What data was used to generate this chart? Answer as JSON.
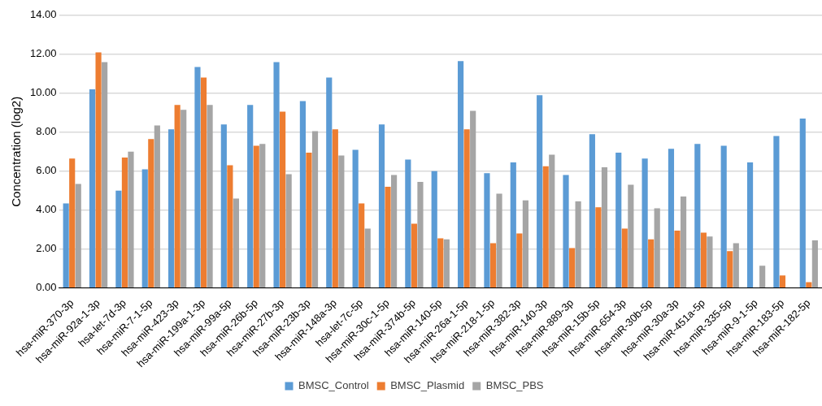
{
  "chart_data": {
    "type": "bar",
    "ylabel": "Concentration (log2)",
    "categories": [
      "hsa-miR-370-3p",
      "hsa-miR-92a-1-3p",
      "hsa-let-7d-3p",
      "hsa-miR-7-1-5p",
      "hsa-miR-423-3p",
      "hsa-miR-199a-1-3p",
      "hsa-miR-99a-5p",
      "hsa-miR-26b-5p",
      "hsa-miR-27b-3p",
      "hsa-miR-23b-3p",
      "hsa-miR-148a-3p",
      "hsa-let-7c-5p",
      "hsa-miR-30c-1-5p",
      "hsa-miR-374b-5p",
      "hsa-miR-140-5p",
      "hsa-miR-26a-1-5p",
      "hsa-miR-218-1-5p",
      "hsa-miR-382-3p",
      "hsa-miR-140-3p",
      "hsa-miR-889-3p",
      "hsa-miR-15b-5p",
      "hsa-miR-654-3p",
      "hsa-miR-30b-5p",
      "hsa-miR-30a-3p",
      "hsa-miR-451a-5p",
      "hsa-miR-335-5p",
      "hsa-miR-9-1-5p",
      "hsa-miR-183-5p",
      "hsa-miR-182-5p"
    ],
    "series": [
      {
        "name": "BMSC_Control",
        "color": "#5b9bd5",
        "values": [
          4.35,
          10.2,
          5.0,
          6.1,
          8.15,
          11.35,
          8.4,
          9.4,
          11.6,
          9.6,
          10.8,
          7.1,
          8.4,
          6.6,
          6.0,
          11.65,
          5.9,
          6.45,
          9.9,
          5.8,
          7.9,
          6.95,
          6.65,
          7.15,
          7.4,
          7.3,
          6.45,
          7.8,
          8.7
        ]
      },
      {
        "name": "BMSC_Plasmid",
        "color": "#ed7d31",
        "values": [
          6.65,
          12.1,
          6.7,
          7.65,
          9.4,
          10.8,
          6.3,
          7.3,
          9.05,
          6.95,
          8.15,
          4.35,
          5.2,
          3.3,
          2.55,
          8.15,
          2.3,
          2.8,
          6.25,
          2.05,
          4.15,
          3.05,
          2.5,
          2.95,
          2.85,
          1.9,
          null,
          0.65,
          0.3
        ]
      },
      {
        "name": "BMSC_PBS",
        "color": "#a5a5a5",
        "values": [
          5.35,
          11.6,
          7.0,
          8.35,
          9.15,
          9.4,
          4.6,
          7.4,
          5.85,
          8.05,
          6.8,
          3.05,
          5.8,
          5.45,
          2.5,
          9.1,
          4.85,
          4.5,
          6.85,
          4.45,
          6.2,
          5.3,
          4.1,
          4.7,
          2.65,
          2.3,
          1.15,
          null,
          2.45
        ]
      }
    ],
    "ylim": [
      0,
      14
    ],
    "yticks": [
      {
        "value": 0,
        "label": "0.00"
      },
      {
        "value": 2,
        "label": "2.00"
      },
      {
        "value": 4,
        "label": "4.00"
      },
      {
        "value": 6,
        "label": "6.00"
      },
      {
        "value": 8,
        "label": "8.00"
      },
      {
        "value": 10,
        "label": "10.00"
      },
      {
        "value": 12,
        "label": "12.00"
      },
      {
        "value": 14,
        "label": "14.00"
      }
    ],
    "grid": "y",
    "legend": "bottom"
  }
}
